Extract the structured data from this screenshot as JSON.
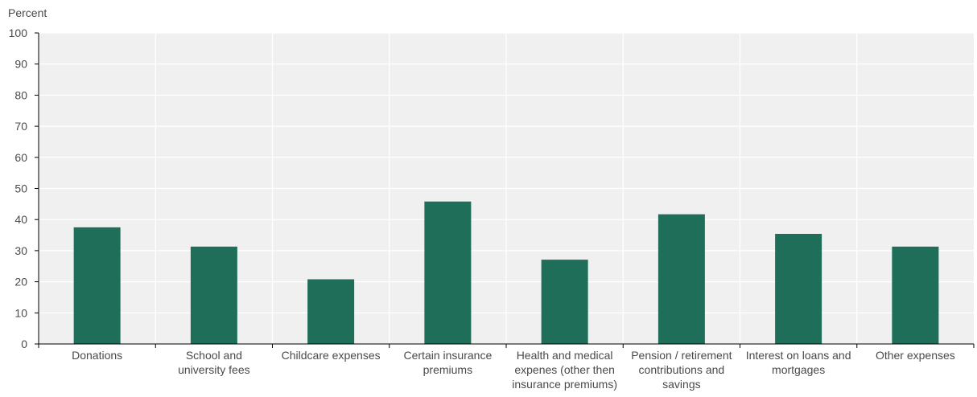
{
  "chart_data": {
    "type": "bar",
    "ylabel": "Percent",
    "ylim": [
      0,
      100
    ],
    "yticks": [
      0,
      10,
      20,
      30,
      40,
      50,
      60,
      70,
      80,
      90,
      100
    ],
    "grid": true,
    "categories": [
      "Donations",
      "School and university fees",
      "Childcare expenses",
      "Certain insurance premiums",
      "Health and medical expenes (other then insurance premiums)",
      "Pension / retirement contributions and savings",
      "Interest on loans and mortgages",
      "Other expenses"
    ],
    "category_lines": [
      [
        "Donations"
      ],
      [
        "School and",
        "university fees"
      ],
      [
        "Childcare expenses"
      ],
      [
        "Certain insurance",
        "premiums"
      ],
      [
        "Health and medical",
        "expenes (other then",
        "insurance premiums)"
      ],
      [
        "Pension / retirement",
        "contributions and",
        "savings"
      ],
      [
        "Interest on loans and",
        "mortgages"
      ],
      [
        "Other expenses"
      ]
    ],
    "values": [
      37.5,
      31.3,
      20.8,
      45.8,
      27.1,
      41.7,
      35.4,
      31.3
    ]
  },
  "colors": {
    "bar": "#1f6e5a",
    "plot_bg": "#f0f0f0",
    "grid": "#ffffff",
    "axis": "#000000"
  }
}
